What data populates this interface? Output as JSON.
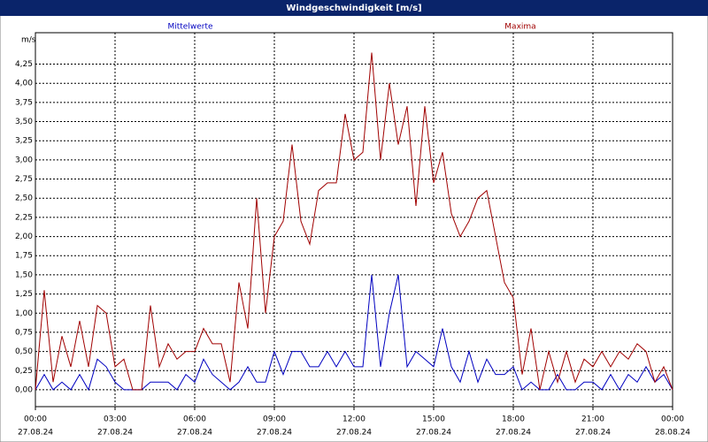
{
  "chart_data": {
    "type": "line",
    "title": "Windgeschwindigkeit [m/s]",
    "y_label": "m/s",
    "x": [
      0,
      20,
      40,
      60,
      80,
      100,
      120,
      140,
      160,
      180,
      200,
      220,
      240,
      260,
      280,
      300,
      320,
      340,
      360,
      380,
      400,
      420,
      440,
      460,
      480,
      500,
      520,
      540,
      560,
      580,
      600,
      620,
      640,
      660,
      680,
      700,
      720,
      740,
      760,
      780,
      800,
      820,
      840,
      860,
      880,
      900,
      920,
      940,
      960,
      980,
      1000,
      1020,
      1040,
      1060,
      1080,
      1100,
      1120,
      1140,
      1160,
      1180,
      1200,
      1220,
      1240,
      1260,
      1280,
      1300,
      1320,
      1340,
      1360,
      1380,
      1400,
      1420,
      1440
    ],
    "series": [
      {
        "name": "Mittelwerte",
        "color": "#0000c0",
        "values": [
          0,
          0.2,
          0,
          0.1,
          0,
          0.2,
          0,
          0.4,
          0.3,
          0.1,
          0,
          0,
          0,
          0.1,
          0.1,
          0.1,
          0,
          0.2,
          0.1,
          0.4,
          0.2,
          0.1,
          0,
          0.1,
          0.3,
          0.1,
          0.1,
          0.5,
          0.2,
          0.5,
          0.5,
          0.3,
          0.3,
          0.5,
          0.3,
          0.5,
          0.3,
          0.3,
          1.5,
          0.3,
          1.0,
          1.5,
          0.3,
          0.5,
          0.4,
          0.3,
          0.8,
          0.3,
          0.1,
          0.5,
          0.1,
          0.4,
          0.2,
          0.2,
          0.3,
          0,
          0.1,
          0,
          0,
          0.2,
          0,
          0,
          0.1,
          0.1,
          0,
          0.2,
          0,
          0.2,
          0.1,
          0.3,
          0.1,
          0.2,
          0
        ]
      },
      {
        "name": "Maxima",
        "color": "#a00000",
        "values": [
          0,
          1.3,
          0.1,
          0.7,
          0.3,
          0.9,
          0.3,
          1.1,
          1.0,
          0.3,
          0.4,
          0,
          0,
          1.1,
          0.3,
          0.6,
          0.4,
          0.5,
          0.5,
          0.8,
          0.6,
          0.6,
          0.1,
          1.4,
          0.8,
          2.5,
          1.0,
          2.0,
          2.2,
          3.2,
          2.2,
          1.9,
          2.6,
          2.7,
          2.7,
          3.6,
          3.0,
          3.1,
          4.4,
          3.0,
          4.0,
          3.2,
          3.7,
          2.4,
          3.7,
          2.7,
          3.1,
          2.3,
          2.0,
          2.2,
          2.5,
          2.6,
          2.0,
          1.4,
          1.2,
          0.2,
          0.8,
          0,
          0.5,
          0.1,
          0.5,
          0.1,
          0.4,
          0.3,
          0.5,
          0.3,
          0.5,
          0.4,
          0.6,
          0.5,
          0.1,
          0.3,
          0
        ]
      }
    ],
    "xlim": [
      0,
      1440
    ],
    "xticks": [
      {
        "value": 0,
        "label": [
          "00:00",
          "27.08.24"
        ]
      },
      {
        "value": 180,
        "label": [
          "03:00",
          "27.08.24"
        ]
      },
      {
        "value": 360,
        "label": [
          "06:00",
          "27.08.24"
        ]
      },
      {
        "value": 540,
        "label": [
          "09:00",
          "27.08.24"
        ]
      },
      {
        "value": 720,
        "label": [
          "12:00",
          "27.08.24"
        ]
      },
      {
        "value": 900,
        "label": [
          "15:00",
          "27.08.24"
        ]
      },
      {
        "value": 1080,
        "label": [
          "18:00",
          "27.08.24"
        ]
      },
      {
        "value": 1260,
        "label": [
          "21:00",
          "27.08.24"
        ]
      },
      {
        "value": 1440,
        "label": [
          "00:00",
          "28.08.24"
        ]
      }
    ],
    "ylim": [
      -0.22,
      4.66
    ],
    "yticks": [
      {
        "value": 0,
        "label": "0,00"
      },
      {
        "value": 0.25,
        "label": "0,25"
      },
      {
        "value": 0.5,
        "label": "0,50"
      },
      {
        "value": 0.75,
        "label": "0,75"
      },
      {
        "value": 1,
        "label": "1,00"
      },
      {
        "value": 1.25,
        "label": "1,25"
      },
      {
        "value": 1.5,
        "label": "1,50"
      },
      {
        "value": 1.75,
        "label": "1,75"
      },
      {
        "value": 2,
        "label": "2,00"
      },
      {
        "value": 2.25,
        "label": "2,25"
      },
      {
        "value": 2.5,
        "label": "2,50"
      },
      {
        "value": 2.75,
        "label": "2,75"
      },
      {
        "value": 3,
        "label": "3,00"
      },
      {
        "value": 3.25,
        "label": "3,25"
      },
      {
        "value": 3.5,
        "label": "3,50"
      },
      {
        "value": 3.75,
        "label": "3,75"
      },
      {
        "value": 4,
        "label": "4,00"
      },
      {
        "value": 4.25,
        "label": "4,25"
      }
    ],
    "grid": true
  }
}
